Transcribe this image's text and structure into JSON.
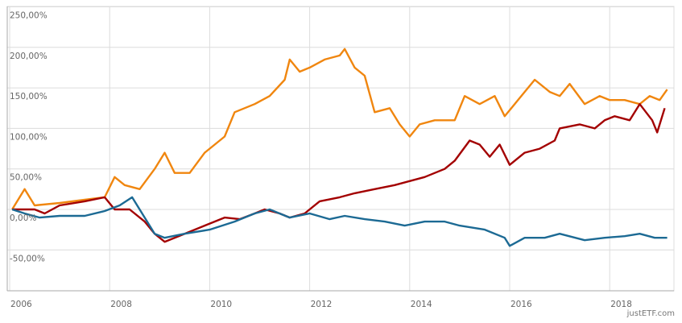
{
  "chart_data": {
    "type": "line",
    "title": "",
    "xlabel": "",
    "ylabel": "",
    "xlim": [
      2005.93,
      2019.3
    ],
    "ylim": [
      -100,
      250
    ],
    "x_ticks": [
      2006,
      2008,
      2010,
      2012,
      2014,
      2016,
      2018
    ],
    "x_tick_labels": [
      "2006",
      "2008",
      "2010",
      "2012",
      "2014",
      "2016",
      "2018"
    ],
    "y_ticks": [
      -50,
      0,
      50,
      100,
      150,
      200,
      250
    ],
    "y_tick_labels": [
      "-50,00%",
      "0,00%",
      "50,00%",
      "100,00%",
      "150,00%",
      "200,00%",
      "250,00%"
    ],
    "grid": true,
    "legend": "none",
    "credit": "justETF.com",
    "series": [
      {
        "name": "orange",
        "color": "#f0860f",
        "x": [
          2006.05,
          2006.3,
          2006.5,
          2007.0,
          2007.5,
          2007.9,
          2008.1,
          2008.3,
          2008.6,
          2008.9,
          2009.1,
          2009.3,
          2009.6,
          2009.9,
          2010.3,
          2010.5,
          2010.9,
          2011.2,
          2011.5,
          2011.6,
          2011.8,
          2012.0,
          2012.3,
          2012.6,
          2012.7,
          2012.9,
          2013.1,
          2013.3,
          2013.6,
          2013.8,
          2014.0,
          2014.2,
          2014.5,
          2014.9,
          2015.1,
          2015.4,
          2015.7,
          2015.9,
          2016.1,
          2016.3,
          2016.5,
          2016.8,
          2017.0,
          2017.2,
          2017.5,
          2017.8,
          2018.0,
          2018.3,
          2018.6,
          2018.8,
          2019.0,
          2019.15
        ],
        "y": [
          0,
          25,
          5,
          8,
          12,
          15,
          40,
          30,
          25,
          50,
          70,
          45,
          45,
          70,
          90,
          120,
          130,
          140,
          160,
          185,
          170,
          175,
          185,
          190,
          198,
          175,
          165,
          120,
          125,
          105,
          90,
          105,
          110,
          110,
          140,
          130,
          140,
          115,
          130,
          145,
          160,
          145,
          140,
          155,
          130,
          140,
          135,
          135,
          130,
          140,
          135,
          148
        ]
      },
      {
        "name": "red",
        "color": "#a30000",
        "x": [
          2006.05,
          2006.5,
          2006.7,
          2007.0,
          2007.5,
          2007.9,
          2008.1,
          2008.4,
          2008.7,
          2008.9,
          2009.1,
          2009.5,
          2009.9,
          2010.3,
          2010.6,
          2010.9,
          2011.1,
          2011.4,
          2011.6,
          2011.9,
          2012.2,
          2012.6,
          2012.9,
          2013.3,
          2013.7,
          2014.0,
          2014.3,
          2014.7,
          2014.9,
          2015.2,
          2015.4,
          2015.6,
          2015.8,
          2016.0,
          2016.3,
          2016.6,
          2016.9,
          2017.0,
          2017.4,
          2017.7,
          2017.9,
          2018.1,
          2018.4,
          2018.6,
          2018.85,
          2018.95,
          2019.1
        ],
        "y": [
          0,
          0,
          -5,
          5,
          10,
          15,
          0,
          0,
          -15,
          -30,
          -40,
          -30,
          -20,
          -10,
          -12,
          -5,
          0,
          -5,
          -10,
          -5,
          10,
          15,
          20,
          25,
          30,
          35,
          40,
          50,
          60,
          85,
          80,
          65,
          80,
          55,
          70,
          75,
          85,
          100,
          105,
          100,
          110,
          115,
          110,
          130,
          110,
          95,
          125
        ]
      },
      {
        "name": "blue",
        "color": "#1c6a94",
        "x": [
          2006.05,
          2006.3,
          2006.6,
          2007.0,
          2007.5,
          2007.9,
          2008.2,
          2008.45,
          2008.7,
          2008.9,
          2009.1,
          2009.5,
          2010.0,
          2010.5,
          2010.9,
          2011.2,
          2011.6,
          2012.0,
          2012.4,
          2012.7,
          2013.1,
          2013.5,
          2013.9,
          2014.3,
          2014.7,
          2015.0,
          2015.5,
          2015.9,
          2016.0,
          2016.3,
          2016.7,
          2017.0,
          2017.5,
          2017.9,
          2018.3,
          2018.6,
          2018.9,
          2019.15
        ],
        "y": [
          0,
          -5,
          -10,
          -8,
          -8,
          -2,
          5,
          15,
          -10,
          -30,
          -35,
          -30,
          -25,
          -15,
          -5,
          0,
          -10,
          -5,
          -12,
          -8,
          -12,
          -15,
          -20,
          -15,
          -15,
          -20,
          -25,
          -35,
          -45,
          -35,
          -35,
          -30,
          -38,
          -35,
          -33,
          -30,
          -35,
          -35
        ]
      }
    ]
  }
}
